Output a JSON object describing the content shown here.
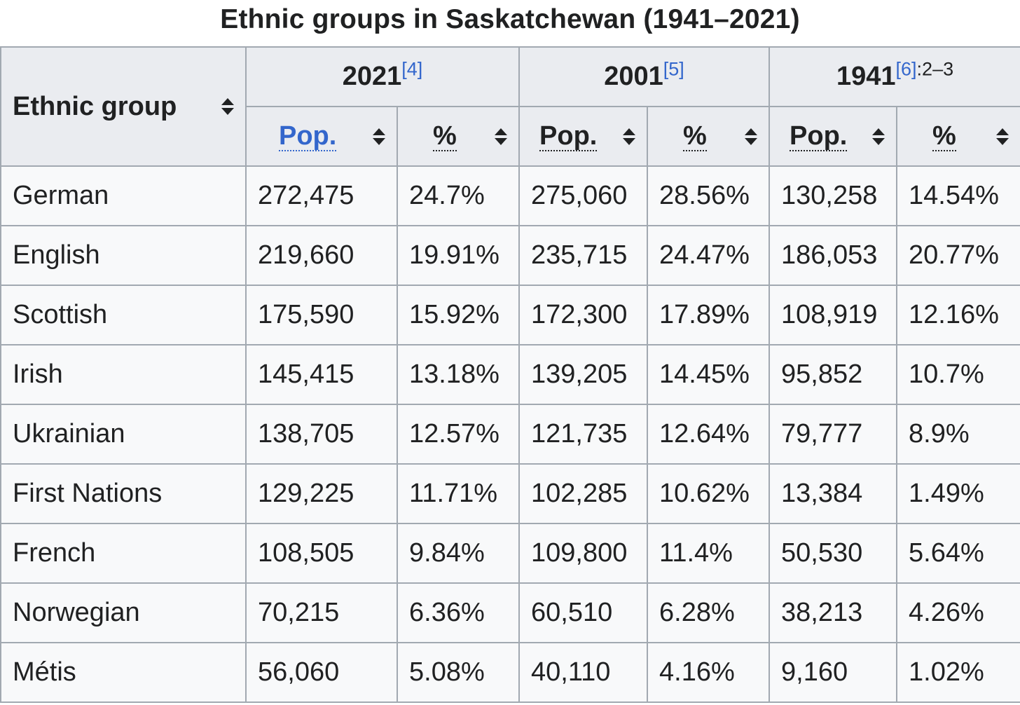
{
  "caption": "Ethnic groups in Saskatchewan (1941–2021)",
  "header": {
    "group_label": "Ethnic group",
    "years": [
      {
        "year": "2021",
        "ref": "[4]",
        "page": ""
      },
      {
        "year": "2001",
        "ref": "[5]",
        "page": ""
      },
      {
        "year": "1941",
        "ref": "[6]",
        "page": ":2–3"
      }
    ],
    "pop_label": "Pop.",
    "pct_label": "%"
  },
  "colors": {
    "header_bg": "#eaecf0",
    "cell_bg": "#f8f9fa",
    "border": "#a2a9b1",
    "link": "#3366cc"
  },
  "rows": [
    {
      "group": "German",
      "pop2021": "272,475",
      "pct2021": "24.7%",
      "pop2001": "275,060",
      "pct2001": "28.56%",
      "pop1941": "130,258",
      "pct1941": "14.54%"
    },
    {
      "group": "English",
      "pop2021": "219,660",
      "pct2021": "19.91%",
      "pop2001": "235,715",
      "pct2001": "24.47%",
      "pop1941": "186,053",
      "pct1941": "20.77%"
    },
    {
      "group": "Scottish",
      "pop2021": "175,590",
      "pct2021": "15.92%",
      "pop2001": "172,300",
      "pct2001": "17.89%",
      "pop1941": "108,919",
      "pct1941": "12.16%"
    },
    {
      "group": "Irish",
      "pop2021": "145,415",
      "pct2021": "13.18%",
      "pop2001": "139,205",
      "pct2001": "14.45%",
      "pop1941": "95,852",
      "pct1941": "10.7%"
    },
    {
      "group": "Ukrainian",
      "pop2021": "138,705",
      "pct2021": "12.57%",
      "pop2001": "121,735",
      "pct2001": "12.64%",
      "pop1941": "79,777",
      "pct1941": "8.9%"
    },
    {
      "group": "First Nations",
      "pop2021": "129,225",
      "pct2021": "11.71%",
      "pop2001": "102,285",
      "pct2001": "10.62%",
      "pop1941": "13,384",
      "pct1941": "1.49%"
    },
    {
      "group": "French",
      "pop2021": "108,505",
      "pct2021": "9.84%",
      "pop2001": "109,800",
      "pct2001": "11.4%",
      "pop1941": "50,530",
      "pct1941": "5.64%"
    },
    {
      "group": "Norwegian",
      "pop2021": "70,215",
      "pct2021": "6.36%",
      "pop2001": "60,510",
      "pct2001": "6.28%",
      "pop1941": "38,213",
      "pct1941": "4.26%"
    },
    {
      "group": "Métis",
      "pop2021": "56,060",
      "pct2021": "5.08%",
      "pop2001": "40,110",
      "pct2001": "4.16%",
      "pop1941": "9,160",
      "pct1941": "1.02%"
    }
  ]
}
